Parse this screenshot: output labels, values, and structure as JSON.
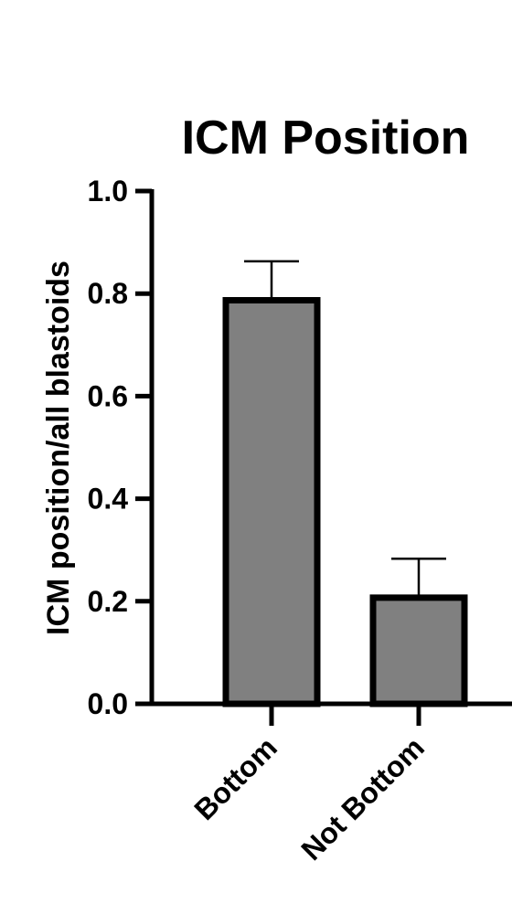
{
  "chart_data": {
    "type": "bar",
    "title": "ICM Position",
    "ylabel": "ICM position/all blastoids",
    "xlabel": "",
    "categories": [
      "Bottom",
      "Not Bottom"
    ],
    "values": [
      0.787,
      0.207
    ],
    "errors": [
      0.076,
      0.076
    ],
    "ylim": [
      0,
      1.0
    ],
    "yticks": [
      "0.0",
      "0.2",
      "0.4",
      "0.6",
      "0.8",
      "1.0"
    ],
    "ytick_values": [
      0,
      0.2,
      0.4,
      0.6,
      0.8,
      1.0
    ],
    "bar_color": "#808080",
    "edge_color": "#000000",
    "grid": false,
    "legend": "none"
  }
}
